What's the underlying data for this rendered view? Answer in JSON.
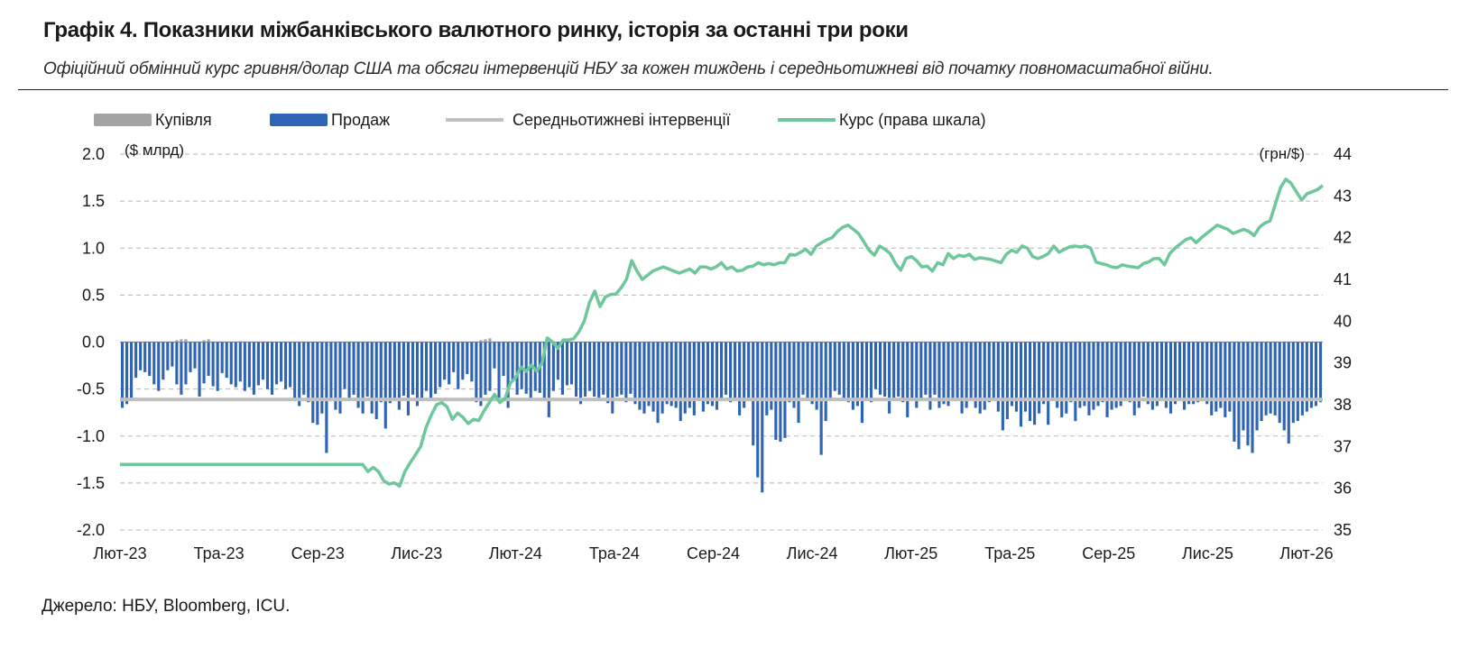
{
  "header": {
    "title": "Графік 4. Показники міжбанківського валютного ринку, історія за останні три роки",
    "subtitle": "Офіційний обмінний курс гривня/долар США та обсяги інтервенцій НБУ за кожен тиждень і середньотижневі від початку повномасштабної війни."
  },
  "footer": {
    "source": "Джерело: НБУ, Bloomberg, ICU."
  },
  "colors": {
    "buy": "#a3a3a3",
    "sell": "#2e64b3",
    "avg": "#c0c0c0",
    "rate": "#6dc79a",
    "grid": "#b5b5b5"
  },
  "chart_data": {
    "type": "bar+line",
    "legend": [
      {
        "name": "Купівля",
        "kind": "bar",
        "color": "#a3a3a3"
      },
      {
        "name": "Продаж",
        "kind": "bar",
        "color": "#2e64b3"
      },
      {
        "name": "Середньотижневі інтервенції",
        "kind": "line",
        "color": "#c0c0c0"
      },
      {
        "name": "Курс (права шкала)",
        "kind": "line",
        "color": "#6dc79a"
      }
    ],
    "left_axis": {
      "unit": "($ млрд)",
      "ylim": [
        -2.0,
        2.0
      ],
      "ticks": [
        "2.0",
        "1.5",
        "1.0",
        "0.5",
        "0.0",
        "-0.5",
        "-1.0",
        "-1.5",
        "-2.0"
      ]
    },
    "right_axis": {
      "unit": "(грн/$)",
      "ylim": [
        35,
        44
      ],
      "ticks": [
        "44",
        "43",
        "42",
        "41",
        "40",
        "39",
        "38",
        "37",
        "36",
        "35"
      ]
    },
    "x_tick_labels": [
      "Лют-23",
      "Тра-23",
      "Сер-23",
      "Лис-23",
      "Лют-24",
      "Тра-24",
      "Сер-24",
      "Лис-24",
      "Лют-25",
      "Тра-25",
      "Сер-25",
      "Лис-25",
      "Лют-26"
    ],
    "grid": "horizontal dashed",
    "weekly_intervention_avg": -0.61,
    "sales": [
      -0.7,
      -0.66,
      -0.6,
      -0.38,
      -0.3,
      -0.32,
      -0.36,
      -0.45,
      -0.52,
      -0.4,
      -0.3,
      -0.26,
      -0.45,
      -0.56,
      -0.45,
      -0.32,
      -0.28,
      -0.58,
      -0.44,
      -0.36,
      -0.47,
      -0.52,
      -0.33,
      -0.38,
      -0.45,
      -0.48,
      -0.42,
      -0.52,
      -0.48,
      -0.56,
      -0.46,
      -0.4,
      -0.5,
      -0.56,
      -0.45,
      -0.42,
      -0.5,
      -0.48,
      -0.62,
      -0.68,
      -0.56,
      -0.64,
      -0.86,
      -0.88,
      -0.76,
      -1.18,
      -0.6,
      -0.72,
      -0.76,
      -0.5,
      -0.62,
      -0.56,
      -0.7,
      -0.76,
      -0.58,
      -0.76,
      -0.82,
      -0.64,
      -0.92,
      -0.65,
      -0.62,
      -0.72,
      -0.57,
      -0.78,
      -0.56,
      -0.68,
      -0.6,
      -0.52,
      -0.62,
      -0.55,
      -0.48,
      -0.4,
      -0.45,
      -0.32,
      -0.5,
      -0.4,
      -0.34,
      -0.42,
      -0.64,
      -0.68,
      -0.56,
      -0.52,
      -0.28,
      -0.6,
      -0.36,
      -0.7,
      -0.4,
      -0.56,
      -0.5,
      -0.55,
      -0.6,
      -0.52,
      -0.54,
      -0.62,
      -0.8,
      -0.52,
      -0.4,
      -0.56,
      -0.46,
      -0.45,
      -0.58,
      -0.66,
      -0.58,
      -0.52,
      -0.58,
      -0.62,
      -0.56,
      -0.65,
      -0.76,
      -0.58,
      -0.56,
      -0.64,
      -0.55,
      -0.66,
      -0.72,
      -0.76,
      -0.68,
      -0.74,
      -0.86,
      -0.76,
      -0.66,
      -0.68,
      -0.7,
      -0.84,
      -0.76,
      -0.7,
      -0.78,
      -0.62,
      -0.74,
      -0.66,
      -0.68,
      -0.72,
      -0.62,
      -0.56,
      -0.64,
      -0.6,
      -0.78,
      -0.7,
      -0.6,
      -1.1,
      -1.44,
      -1.6,
      -0.78,
      -0.72,
      -1.04,
      -1.06,
      -1.02,
      -0.64,
      -0.7,
      -0.86,
      -0.56,
      -0.62,
      -0.66,
      -0.72,
      -1.2,
      -0.84,
      -0.6,
      -0.52,
      -0.56,
      -0.6,
      -0.64,
      -0.72,
      -0.68,
      -0.86,
      -0.62,
      -0.64,
      -0.5,
      -0.56,
      -0.58,
      -0.76,
      -0.6,
      -0.58,
      -0.64,
      -0.8,
      -0.62,
      -0.7,
      -0.6,
      -0.56,
      -0.72,
      -0.56,
      -0.7,
      -0.66,
      -0.68,
      -0.6,
      -0.62,
      -0.76,
      -0.7,
      -0.62,
      -0.7,
      -0.76,
      -0.72,
      -0.64,
      -0.6,
      -0.74,
      -0.94,
      -0.82,
      -0.68,
      -0.74,
      -0.9,
      -0.74,
      -0.84,
      -0.88,
      -0.76,
      -0.66,
      -0.88,
      -0.62,
      -0.7,
      -0.8,
      -0.76,
      -0.64,
      -0.84,
      -0.7,
      -0.68,
      -0.78,
      -0.72,
      -0.68,
      -0.64,
      -0.8,
      -0.72,
      -0.7,
      -0.68,
      -0.6,
      -0.64,
      -0.78,
      -0.7,
      -0.58,
      -0.66,
      -0.72,
      -0.68,
      -0.6,
      -0.7,
      -0.76,
      -0.66,
      -0.62,
      -0.72,
      -0.66,
      -0.66,
      -0.64,
      -0.6,
      -0.66,
      -0.78,
      -0.74,
      -0.7,
      -0.8,
      -0.74,
      -1.06,
      -1.14,
      -0.94,
      -1.1,
      -1.18,
      -0.94,
      -0.84,
      -0.78,
      -0.76,
      -0.78,
      -0.86,
      -0.94,
      -1.08,
      -0.86,
      -0.84,
      -0.78,
      -0.74,
      -0.7,
      -0.68,
      -0.64
    ],
    "purchases": [
      0,
      0,
      0,
      0,
      0,
      0,
      0,
      0,
      0,
      0,
      0,
      0,
      0.02,
      0.03,
      0.03,
      0,
      0,
      0,
      0.02,
      0.03,
      0,
      0,
      0,
      0,
      0,
      0,
      0.01,
      0,
      0,
      0,
      0,
      0,
      0,
      0,
      0,
      0,
      0,
      0,
      0,
      0,
      0,
      0,
      0,
      0,
      0,
      0,
      0,
      0,
      0,
      0,
      0,
      0,
      0,
      0,
      0,
      0,
      0,
      0,
      0,
      0,
      0,
      0,
      0,
      0,
      0,
      0,
      0,
      0,
      0,
      0,
      0,
      0,
      0,
      0,
      0,
      0,
      0,
      0,
      0,
      0.02,
      0.03,
      0.04,
      0,
      0,
      0,
      0,
      0,
      0,
      0,
      0,
      0,
      0,
      0,
      0,
      0,
      0,
      0,
      0,
      0,
      0,
      0,
      0,
      0,
      0,
      0,
      0,
      0,
      0,
      0,
      0,
      0,
      0,
      0,
      0,
      0,
      0,
      0,
      0,
      0,
      0,
      0,
      0,
      0,
      0,
      0,
      0,
      0,
      0,
      0,
      0,
      0,
      0,
      0,
      0,
      0,
      0,
      0,
      0,
      0,
      0,
      0,
      0,
      0,
      0,
      0,
      0,
      0,
      0,
      0,
      0,
      0,
      0,
      0,
      0,
      0,
      0,
      0,
      0,
      0,
      0,
      0,
      0,
      0,
      0,
      0,
      0,
      0,
      0,
      0,
      0,
      0,
      0,
      0,
      0,
      0,
      0,
      0,
      0,
      0,
      0,
      0,
      0,
      0,
      0,
      0,
      0,
      0,
      0,
      0,
      0,
      0,
      0,
      0,
      0,
      0,
      0,
      0,
      0,
      0,
      0,
      0,
      0,
      0,
      0,
      0,
      0,
      0,
      0,
      0,
      0,
      0,
      0,
      0,
      0,
      0,
      0,
      0,
      0,
      0,
      0,
      0,
      0,
      0,
      0,
      0,
      0,
      0,
      0,
      0,
      0,
      0,
      0,
      0,
      0,
      0,
      0,
      0,
      0,
      0,
      0,
      0,
      0,
      0,
      0,
      0,
      0,
      0,
      0,
      0,
      0,
      0,
      0,
      0,
      0,
      0,
      0,
      0,
      0,
      0,
      0,
      0,
      0,
      0,
      0,
      0,
      0,
      0,
      0,
      0,
      0
    ],
    "rate": [
      36.57,
      36.57,
      36.57,
      36.57,
      36.57,
      36.57,
      36.57,
      36.57,
      36.57,
      36.57,
      36.57,
      36.57,
      36.57,
      36.57,
      36.57,
      36.57,
      36.57,
      36.57,
      36.57,
      36.57,
      36.57,
      36.57,
      36.57,
      36.57,
      36.57,
      36.57,
      36.57,
      36.57,
      36.57,
      36.57,
      36.57,
      36.57,
      36.57,
      36.57,
      36.57,
      36.57,
      36.57,
      36.57,
      36.57,
      36.57,
      36.57,
      36.57,
      36.57,
      36.57,
      36.57,
      36.57,
      36.57,
      36.4,
      36.5,
      36.4,
      36.18,
      36.1,
      36.13,
      36.05,
      36.4,
      36.61,
      36.8,
      37.0,
      37.45,
      37.75,
      38.0,
      38.05,
      37.95,
      37.65,
      37.8,
      37.7,
      37.55,
      37.65,
      37.62,
      37.85,
      38.05,
      38.25,
      38.05,
      38.15,
      38.52,
      38.65,
      38.9,
      38.8,
      38.95,
      38.8,
      39.0,
      39.6,
      39.5,
      39.35,
      39.55,
      39.55,
      39.58,
      39.75,
      40.0,
      40.45,
      40.72,
      40.35,
      40.58,
      40.64,
      40.65,
      40.8,
      41.0,
      41.45,
      41.2,
      41.0,
      41.1,
      41.2,
      41.25,
      41.3,
      41.25,
      41.2,
      41.15,
      41.2,
      41.25,
      41.15,
      41.3,
      41.3,
      41.25,
      41.3,
      41.4,
      41.25,
      41.3,
      41.2,
      41.22,
      41.3,
      41.32,
      41.4,
      41.35,
      41.38,
      41.35,
      41.4,
      41.4,
      41.6,
      41.58,
      41.65,
      41.72,
      41.6,
      41.8,
      41.88,
      41.95,
      42.0,
      42.15,
      42.25,
      42.3,
      42.2,
      42.1,
      41.9,
      41.7,
      41.58,
      41.8,
      41.72,
      41.62,
      41.38,
      41.22,
      41.5,
      41.55,
      41.45,
      41.3,
      41.32,
      41.2,
      41.4,
      41.35,
      41.62,
      41.5,
      41.58,
      41.55,
      41.6,
      41.48,
      41.52,
      41.5,
      41.48,
      41.44,
      41.4,
      41.6,
      41.7,
      41.65,
      41.8,
      41.75,
      41.55,
      41.5,
      41.55,
      41.62,
      41.8,
      41.65,
      41.72,
      41.78,
      41.8,
      41.78,
      41.8,
      41.75,
      41.42,
      41.38,
      41.35,
      41.3,
      41.28,
      41.35,
      41.32,
      41.3,
      41.28,
      41.38,
      41.42,
      41.5,
      41.5,
      41.35,
      41.62,
      41.75,
      41.85,
      41.95,
      42.0,
      41.88,
      42.0,
      42.1,
      42.2,
      42.3,
      42.25,
      42.2,
      42.1,
      42.15,
      42.2,
      42.15,
      42.05,
      42.25,
      42.35,
      42.4,
      42.8,
      43.2,
      43.4,
      43.3,
      43.1,
      42.9,
      43.05,
      43.1,
      43.15,
      43.25
    ]
  }
}
